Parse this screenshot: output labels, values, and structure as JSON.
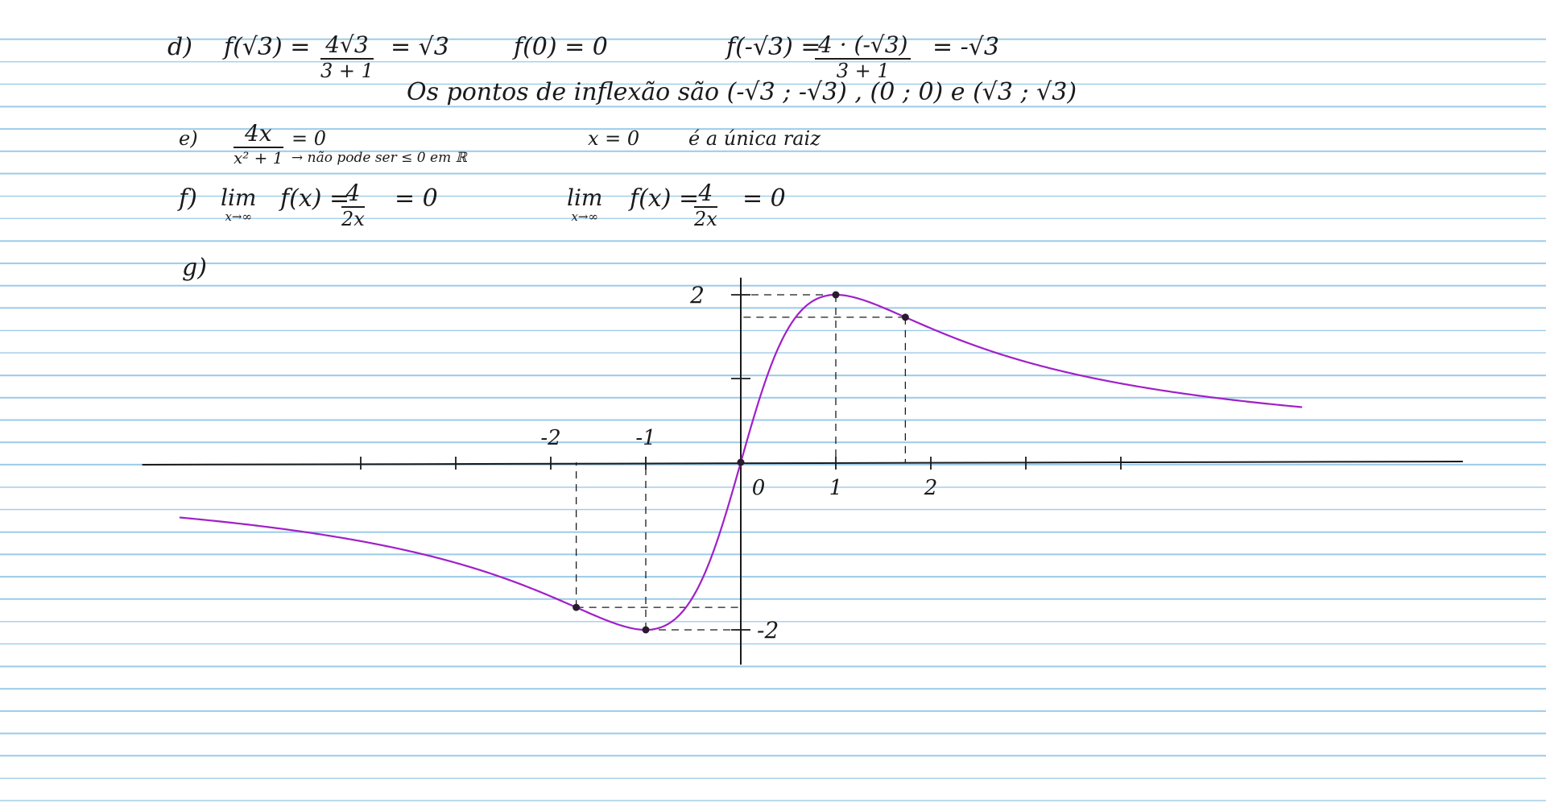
{
  "colors": {
    "rule_line": "#9ccbe8",
    "ink": "#1a1a1a",
    "curve": "#a020c8"
  },
  "part_d": {
    "label": "d)",
    "f_sqrt3_lhs": "f(√3) =",
    "f_sqrt3_num": "4√3",
    "f_sqrt3_den": "3 + 1",
    "f_sqrt3_rhs": "= √3",
    "f_zero": "f(0) = 0",
    "f_neg_sqrt3_lhs": "f(-√3) =",
    "f_neg_sqrt3_num": "4 · (-√3)",
    "f_neg_sqrt3_den": "3 + 1",
    "f_neg_sqrt3_rhs": "= -√3",
    "inflection_text": "Os pontos de inflexão são (-√3 ; -√3) , (0 ; 0) e (√3 ; √3)"
  },
  "part_e": {
    "label": "e)",
    "num": "4x",
    "den": "x² + 1",
    "eq": "= 0",
    "note": "→ não pode ser ≤ 0 em ℝ",
    "root_eq": "x = 0",
    "root_text": "é a única raiz"
  },
  "part_f": {
    "label": "f)",
    "lim1_word": "lim",
    "lim1_sub": "x→∞",
    "lim1_expr": "f(x) =",
    "lim1_num": "4",
    "lim1_den": "2x",
    "lim1_rhs": "= 0",
    "lim2_word": "lim",
    "lim2_sub": "x→∞",
    "lim2_expr": "f(x) =",
    "lim2_num": "4",
    "lim2_den": "2x",
    "lim2_rhs": "= 0"
  },
  "part_g": {
    "label": "g)"
  },
  "chart_data": {
    "type": "line",
    "function": "f(x) = 4x / (x² + 1)",
    "xlim": [
      -6.3,
      7.6
    ],
    "ylim": [
      -2.3,
      2.3
    ],
    "x_tick_values": [
      -4,
      -3,
      -2,
      -1,
      1,
      2,
      3,
      4
    ],
    "x_tick_labels": [
      {
        "value": -2,
        "text": "-2"
      },
      {
        "value": -1,
        "text": "-1"
      },
      {
        "value": 0,
        "text": "0"
      },
      {
        "value": 1,
        "text": "1"
      },
      {
        "value": 2,
        "text": "2"
      }
    ],
    "y_tick_values": [
      -2,
      1,
      2
    ],
    "y_tick_labels": [
      {
        "value": 2,
        "text": "2"
      },
      {
        "value": -2,
        "text": "-2"
      }
    ],
    "x_draw_range": [
      -5.9,
      5.9
    ],
    "marked_points": [
      {
        "x": -1.732,
        "y": -1.732
      },
      {
        "x": -1,
        "y": -2
      },
      {
        "x": 0,
        "y": 0
      },
      {
        "x": 1,
        "y": 2
      },
      {
        "x": 1.732,
        "y": 1.732
      }
    ],
    "guide_lines_from_points": [
      {
        "x": -1.732,
        "y": -1.732
      },
      {
        "x": -1,
        "y": -2
      },
      {
        "x": 1,
        "y": 2
      },
      {
        "x": 1.732,
        "y": 1.732
      }
    ],
    "grid": false
  }
}
